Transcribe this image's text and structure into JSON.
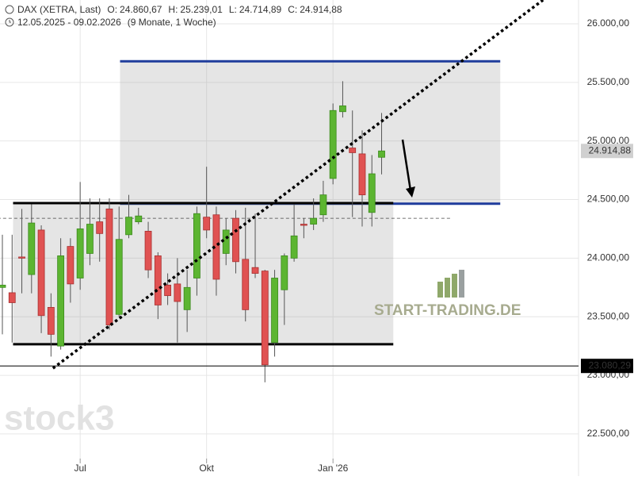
{
  "chart_data": {
    "type": "candlestick",
    "header": {
      "title": "DAX (XETRA, Last)",
      "fields": [
        {
          "label": "O:",
          "value": "24.860,67"
        },
        {
          "label": "H:",
          "value": "25.239,01"
        },
        {
          "label": "L:",
          "value": "24.714,89"
        },
        {
          "label": "C:",
          "value": "24.914,88"
        }
      ],
      "range": "12.05.2025 - 09.02.2026",
      "period": "(9 Monate, 1 Woche)"
    },
    "categories": [
      null,
      null,
      null,
      null,
      null,
      null,
      null,
      null,
      "Jul",
      null,
      null,
      null,
      null,
      null,
      null,
      null,
      null,
      null,
      null,
      null,
      null,
      "Okt",
      null,
      null,
      null,
      null,
      null,
      null,
      null,
      null,
      null,
      null,
      null,
      null,
      "Jan '26",
      null,
      null,
      null,
      null,
      null
    ],
    "open": [
      23750,
      23705,
      24010,
      23860,
      24240,
      23580,
      23250,
      24100,
      23830,
      24040,
      24310,
      24420,
      23520,
      24200,
      24310,
      24230,
      24020,
      23770,
      23780,
      23560,
      23830,
      24350,
      24370,
      24040,
      24340,
      23990,
      23920,
      23890,
      23280,
      23730,
      24000,
      24290,
      24290,
      24370,
      24680,
      25250,
      24940,
      24890,
      24390,
      24860.67
    ],
    "high": [
      24200,
      24200,
      24420,
      24460,
      24280,
      23700,
      24170,
      24170,
      24650,
      24510,
      24510,
      24510,
      24440,
      24540,
      24430,
      24310,
      24050,
      23870,
      24000,
      23900,
      24440,
      24780,
      24440,
      24340,
      24410,
      24430,
      24380,
      23900,
      23900,
      24040,
      24460,
      24340,
      24510,
      24660,
      25320,
      25510,
      25260,
      25090,
      24880,
      25239.01
    ],
    "low": [
      23350,
      23280,
      23700,
      23700,
      23360,
      23160,
      23220,
      23620,
      23730,
      23940,
      23970,
      23390,
      23500,
      24170,
      24290,
      23830,
      23480,
      23600,
      23280,
      23370,
      23680,
      24170,
      23680,
      23940,
      23870,
      23460,
      23830,
      22940,
      23160,
      23430,
      23970,
      24170,
      24240,
      24310,
      24630,
      25200,
      24350,
      24270,
      24270,
      24714.89
    ],
    "close": [
      23770,
      23620,
      24000,
      24300,
      23510,
      23350,
      24020,
      23780,
      24250,
      24290,
      24210,
      23430,
      24160,
      24350,
      24360,
      23900,
      23600,
      23680,
      23630,
      23750,
      24380,
      24240,
      23820,
      24240,
      23970,
      23560,
      23870,
      23090,
      23830,
      24020,
      24190,
      24280,
      24340,
      24540,
      25260,
      25300,
      24900,
      24540,
      24720,
      24914.88
    ],
    "up_color": "#5cb531",
    "down_color": "#e05252",
    "ylim": [
      22276,
      26203
    ],
    "yticks": [
      {
        "value": 22500,
        "label": "22.500,00"
      },
      {
        "value": 23000,
        "label": "23.000,00"
      },
      {
        "value": 23500,
        "label": "23.500,00"
      },
      {
        "value": 24000,
        "label": "24.000,00"
      },
      {
        "value": 24500,
        "label": "24.500,00"
      },
      {
        "value": 25000,
        "label": "25.000,00"
      },
      {
        "value": 25500,
        "label": "25.500,00"
      },
      {
        "value": 26000,
        "label": "26.000,00"
      }
    ],
    "grid": true,
    "price_markers": [
      {
        "value": 24914.88,
        "label": "24.914,88",
        "color": "#d0d0d0"
      },
      {
        "value": 23080.29,
        "label": "23.080,29",
        "color": "#000000"
      }
    ],
    "zones": [
      {
        "x": [
          12.1,
          51.2
        ],
        "y": [
          24465,
          25680
        ],
        "color": "#1f3c9c"
      },
      {
        "x": [
          1.1,
          40.2
        ],
        "y": [
          23265,
          24470
        ],
        "color": "#000000"
      }
    ],
    "dashed_level": {
      "value": 24340,
      "x": [
        -0.5,
        46.2
      ]
    },
    "trendline": {
      "x": [
        5.2,
        55.6
      ],
      "y": [
        23060,
        26203
      ]
    },
    "watermarks": [
      "stock3",
      "START-TRADING.DE"
    ]
  }
}
